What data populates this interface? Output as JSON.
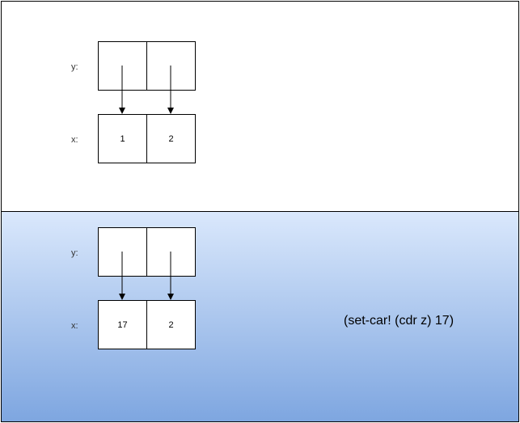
{
  "top_panel": {
    "y_label": "y:",
    "x_label": "x:",
    "x_values": [
      "1",
      "2"
    ]
  },
  "bottom_panel": {
    "y_label": "y:",
    "x_label": "x:",
    "x_values": [
      "17",
      "2"
    ],
    "expression": "(set-car! (cdr z) 17)",
    "gradient": {
      "top_color": "#dae8fc",
      "bottom_color": "#7ea6e0"
    }
  }
}
